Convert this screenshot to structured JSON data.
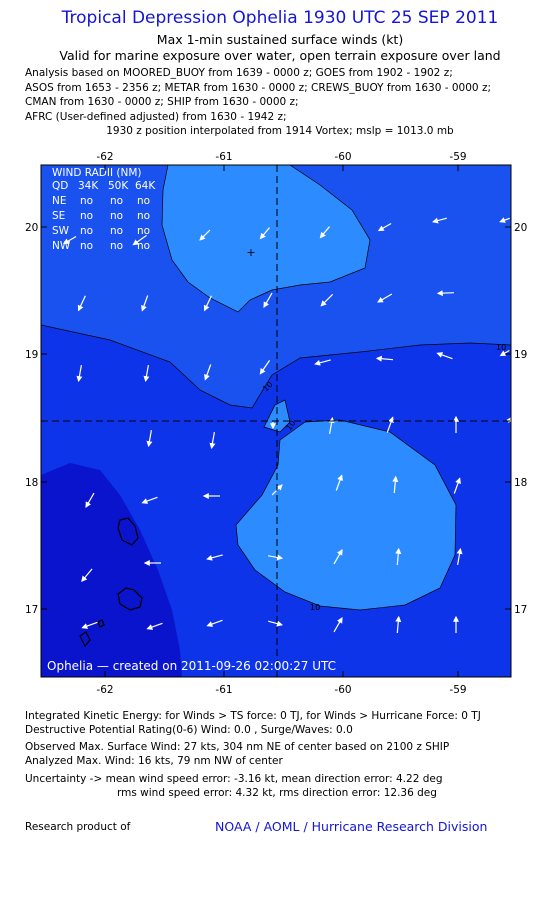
{
  "header": {
    "title": "Tropical Depression Ophelia 1930 UTC 25 SEP 2011",
    "subtitle": "Max 1-min sustained surface winds (kt)",
    "validity": "Valid for marine exposure over water, open terrain exposure over land",
    "analysis_lines": [
      "Analysis based on MOORED_BUOY from 1639 - 0000 z; GOES from 1902 - 1902 z;",
      "ASOS from 1653 - 2356 z; METAR from 1630 - 0000 z; CREWS_BUOY from 1630 - 0000 z;",
      "CMAN from 1630 - 0000 z; SHIP from 1630 - 0000 z;",
      "AFRC (User-defined adjusted) from 1630 - 1942 z;"
    ],
    "position_note": "1930 z position interpolated from 1914 Vortex; mslp = 1013.0 mb"
  },
  "map": {
    "x_ticks": [
      "-62",
      "-61",
      "-60",
      "-59"
    ],
    "y_ticks": [
      "20",
      "19",
      "18",
      "17"
    ],
    "contour_labels": [
      "10",
      "10",
      "10",
      "10"
    ],
    "credit": "Ophelia — created on 2011-09-26 02:00:27 UTC",
    "colors": {
      "level_0_10": "#1a52f0",
      "level_10_20": "#0e34ea",
      "light_region": "#2c8cff",
      "dark_region": "#0a14cc",
      "arrow": "#ffffff"
    },
    "wind_radii": {
      "title": "WIND RADII (NM)",
      "header": [
        "QD",
        "34K",
        "50K",
        "64K"
      ],
      "rows": [
        [
          "NE",
          "no",
          "no",
          "no"
        ],
        [
          "SE",
          "no",
          "no",
          "no"
        ],
        [
          "SW",
          "no",
          "no",
          "no"
        ],
        [
          "NW",
          "no",
          "no",
          "no"
        ]
      ]
    }
  },
  "footer": {
    "ike": "Integrated Kinetic Energy:  for Winds > TS force: 0 TJ,  for Winds > Hurricane Force: 0 TJ",
    "dpr": "Destructive Potential Rating(0-6)   Wind: 0.0 , Surge/Waves: 0.0",
    "obs_max": "Observed Max. Surface Wind: 27 kts, 304 nm NE of center based on 2100 z SHIP",
    "analyzed_max": "Analyzed Max. Wind: 16 kts, 79 nm NW of center",
    "uncertainty_1": "Uncertainty -> mean wind speed error:  -3.16 kt,   mean direction error: 4.22 deg",
    "uncertainty_2": "rms wind speed error: 4.32 kt,   rms direction error: 12.36 deg",
    "research": "Research product of",
    "org": "NOAA / AOML / Hurricane Research Division"
  }
}
